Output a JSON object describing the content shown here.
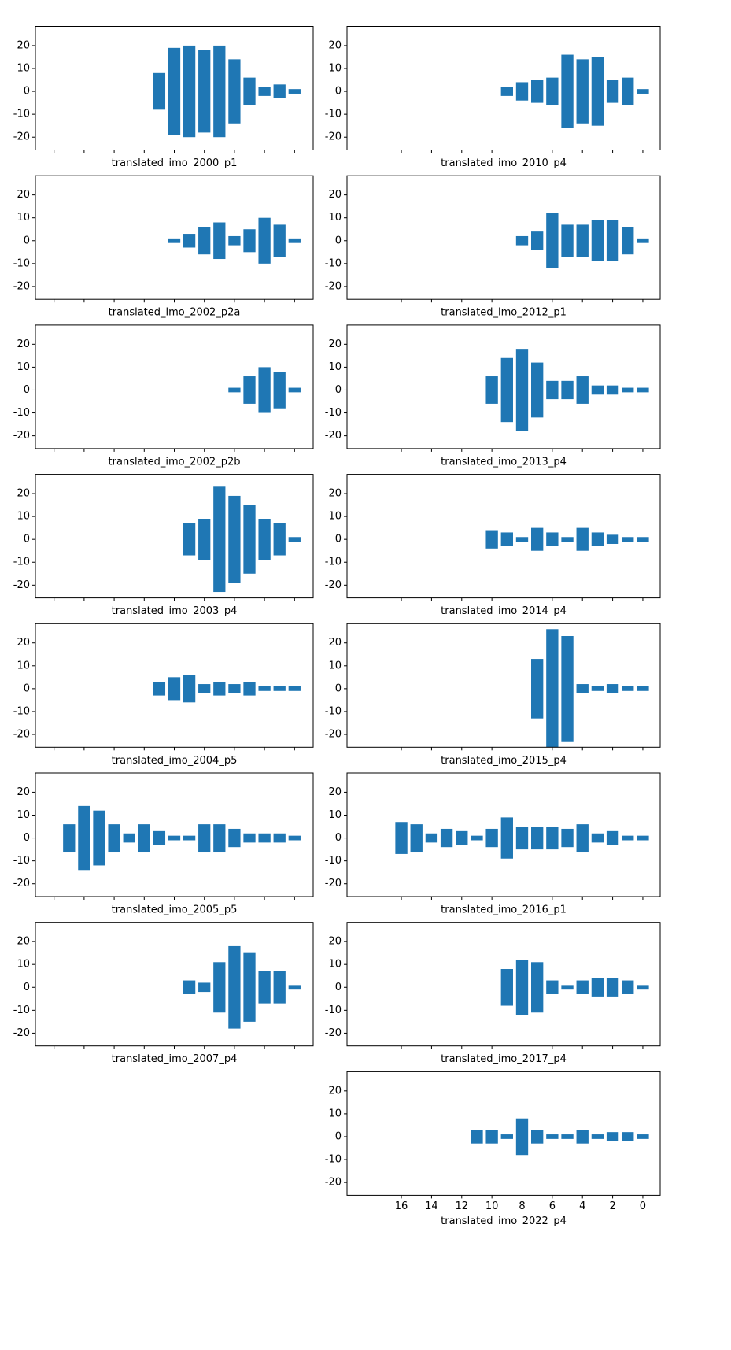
{
  "chart_data": [
    {
      "type": "bar",
      "xlabel": "translated_imo_2000_p1",
      "x": [
        9,
        8,
        7,
        6,
        5,
        4,
        3,
        2,
        1,
        0
      ],
      "values": [
        8,
        19,
        20,
        18,
        20,
        14,
        6,
        2,
        3,
        1
      ],
      "color": "#1f77b4",
      "xlim": [
        17.24,
        -1.24
      ],
      "ylim": [
        -25.6,
        28.4
      ],
      "yticks": [
        -20,
        -10,
        0,
        10,
        20
      ],
      "xticks": [
        16,
        14,
        12,
        10,
        8,
        6,
        4,
        2,
        0
      ],
      "show_xtick_labels": false
    },
    {
      "type": "bar",
      "xlabel": "translated_imo_2010_p4",
      "x": [
        9,
        8,
        7,
        6,
        5,
        4,
        3,
        2,
        1,
        0
      ],
      "values": [
        2,
        4,
        5,
        6,
        16,
        14,
        15,
        5,
        6,
        1
      ],
      "color": "#1f77b4",
      "xlim": [
        19.6,
        -1.15
      ],
      "ylim": [
        -25.6,
        28.4
      ],
      "yticks": [
        -20,
        -10,
        0,
        10,
        20
      ],
      "xticks": [
        16,
        14,
        12,
        10,
        8,
        6,
        4,
        2,
        0
      ],
      "show_xtick_labels": false
    },
    {
      "type": "bar",
      "xlabel": "translated_imo_2002_p2a",
      "x": [
        8,
        7,
        6,
        5,
        4,
        3,
        2,
        1,
        0
      ],
      "values": [
        1,
        3,
        6,
        8,
        2,
        5,
        10,
        7,
        1
      ],
      "color": "#1f77b4",
      "xlim": [
        17.24,
        -1.24
      ],
      "ylim": [
        -25.6,
        28.4
      ],
      "yticks": [
        -20,
        -10,
        0,
        10,
        20
      ],
      "xticks": [
        16,
        14,
        12,
        10,
        8,
        6,
        4,
        2,
        0
      ],
      "show_xtick_labels": false
    },
    {
      "type": "bar",
      "xlabel": "translated_imo_2012_p1",
      "x": [
        8,
        7,
        6,
        5,
        4,
        3,
        2,
        1,
        0
      ],
      "values": [
        2,
        4,
        12,
        7,
        7,
        9,
        9,
        6,
        1
      ],
      "color": "#1f77b4",
      "xlim": [
        19.6,
        -1.15
      ],
      "ylim": [
        -25.6,
        28.4
      ],
      "yticks": [
        -20,
        -10,
        0,
        10,
        20
      ],
      "xticks": [
        16,
        14,
        12,
        10,
        8,
        6,
        4,
        2,
        0
      ],
      "show_xtick_labels": false
    },
    {
      "type": "bar",
      "xlabel": "translated_imo_2002_p2b",
      "x": [
        4,
        3,
        2,
        1,
        0
      ],
      "values": [
        1,
        6,
        10,
        8,
        1
      ],
      "color": "#1f77b4",
      "xlim": [
        17.24,
        -1.24
      ],
      "ylim": [
        -25.6,
        28.4
      ],
      "yticks": [
        -20,
        -10,
        0,
        10,
        20
      ],
      "xticks": [
        16,
        14,
        12,
        10,
        8,
        6,
        4,
        2,
        0
      ],
      "show_xtick_labels": false
    },
    {
      "type": "bar",
      "xlabel": "translated_imo_2013_p4",
      "x": [
        10,
        9,
        8,
        7,
        6,
        5,
        4,
        3,
        2,
        1,
        0
      ],
      "values": [
        6,
        14,
        18,
        12,
        4,
        4,
        6,
        2,
        2,
        1,
        1
      ],
      "color": "#1f77b4",
      "xlim": [
        19.6,
        -1.15
      ],
      "ylim": [
        -25.6,
        28.4
      ],
      "yticks": [
        -20,
        -10,
        0,
        10,
        20
      ],
      "xticks": [
        16,
        14,
        12,
        10,
        8,
        6,
        4,
        2,
        0
      ],
      "show_xtick_labels": false
    },
    {
      "type": "bar",
      "xlabel": "translated_imo_2003_p4",
      "x": [
        7,
        6,
        5,
        4,
        3,
        2,
        1,
        0
      ],
      "values": [
        7,
        9,
        23,
        19,
        15,
        9,
        7,
        1
      ],
      "color": "#1f77b4",
      "xlim": [
        17.24,
        -1.24
      ],
      "ylim": [
        -25.6,
        28.4
      ],
      "yticks": [
        -20,
        -10,
        0,
        10,
        20
      ],
      "xticks": [
        16,
        14,
        12,
        10,
        8,
        6,
        4,
        2,
        0
      ],
      "show_xtick_labels": false
    },
    {
      "type": "bar",
      "xlabel": "translated_imo_2014_p4",
      "x": [
        10,
        9,
        8,
        7,
        6,
        5,
        4,
        3,
        2,
        1,
        0
      ],
      "values": [
        4,
        3,
        1,
        5,
        3,
        1,
        5,
        3,
        2,
        1,
        1
      ],
      "color": "#1f77b4",
      "xlim": [
        19.6,
        -1.15
      ],
      "ylim": [
        -25.6,
        28.4
      ],
      "yticks": [
        -20,
        -10,
        0,
        10,
        20
      ],
      "xticks": [
        16,
        14,
        12,
        10,
        8,
        6,
        4,
        2,
        0
      ],
      "show_xtick_labels": false
    },
    {
      "type": "bar",
      "xlabel": "translated_imo_2004_p5",
      "x": [
        9,
        8,
        7,
        6,
        5,
        4,
        3,
        2,
        1,
        0
      ],
      "values": [
        3,
        5,
        6,
        2,
        3,
        2,
        3,
        1,
        1,
        1
      ],
      "color": "#1f77b4",
      "xlim": [
        17.24,
        -1.24
      ],
      "ylim": [
        -25.6,
        28.4
      ],
      "yticks": [
        -20,
        -10,
        0,
        10,
        20
      ],
      "xticks": [
        16,
        14,
        12,
        10,
        8,
        6,
        4,
        2,
        0
      ],
      "show_xtick_labels": false
    },
    {
      "type": "bar",
      "xlabel": "translated_imo_2015_p4",
      "x": [
        7,
        6,
        5,
        4,
        3,
        2,
        1,
        0
      ],
      "values": [
        13,
        26,
        23,
        2,
        1,
        2,
        1,
        1
      ],
      "color": "#1f77b4",
      "xlim": [
        19.6,
        -1.15
      ],
      "ylim": [
        -25.6,
        28.4
      ],
      "yticks": [
        -20,
        -10,
        0,
        10,
        20
      ],
      "xticks": [
        16,
        14,
        12,
        10,
        8,
        6,
        4,
        2,
        0
      ],
      "show_xtick_labels": false
    },
    {
      "type": "bar",
      "xlabel": "translated_imo_2005_p5",
      "x": [
        15,
        14,
        13,
        12,
        11,
        10,
        9,
        8,
        7,
        6,
        5,
        4,
        3,
        2,
        1,
        0
      ],
      "values": [
        6,
        14,
        12,
        6,
        2,
        6,
        3,
        1,
        1,
        6,
        6,
        4,
        2,
        2,
        2,
        1
      ],
      "color": "#1f77b4",
      "xlim": [
        17.24,
        -1.24
      ],
      "ylim": [
        -25.6,
        28.4
      ],
      "yticks": [
        -20,
        -10,
        0,
        10,
        20
      ],
      "xticks": [
        16,
        14,
        12,
        10,
        8,
        6,
        4,
        2,
        0
      ],
      "show_xtick_labels": false
    },
    {
      "type": "bar",
      "xlabel": "translated_imo_2016_p1",
      "x": [
        16,
        15,
        14,
        13,
        12,
        11,
        10,
        9,
        8,
        7,
        6,
        5,
        4,
        3,
        2,
        1,
        0
      ],
      "values": [
        7,
        6,
        2,
        4,
        3,
        1,
        4,
        9,
        5,
        5,
        5,
        4,
        6,
        2,
        3,
        1,
        1
      ],
      "color": "#1f77b4",
      "xlim": [
        19.6,
        -1.15
      ],
      "ylim": [
        -25.6,
        28.4
      ],
      "yticks": [
        -20,
        -10,
        0,
        10,
        20
      ],
      "xticks": [
        16,
        14,
        12,
        10,
        8,
        6,
        4,
        2,
        0
      ],
      "show_xtick_labels": false
    },
    {
      "type": "bar",
      "xlabel": "translated_imo_2007_p4",
      "x": [
        7,
        6,
        5,
        4,
        3,
        2,
        1,
        0
      ],
      "values": [
        3,
        2,
        11,
        18,
        15,
        7,
        7,
        1
      ],
      "color": "#1f77b4",
      "xlim": [
        17.24,
        -1.24
      ],
      "ylim": [
        -25.6,
        28.4
      ],
      "yticks": [
        -20,
        -10,
        0,
        10,
        20
      ],
      "xticks": [
        16,
        14,
        12,
        10,
        8,
        6,
        4,
        2,
        0
      ],
      "show_xtick_labels": false
    },
    {
      "type": "bar",
      "xlabel": "translated_imo_2017_p4",
      "x": [
        9,
        8,
        7,
        6,
        5,
        4,
        3,
        2,
        1,
        0
      ],
      "values": [
        8,
        12,
        11,
        3,
        1,
        3,
        4,
        4,
        3,
        1
      ],
      "color": "#1f77b4",
      "xlim": [
        19.6,
        -1.15
      ],
      "ylim": [
        -25.6,
        28.4
      ],
      "yticks": [
        -20,
        -10,
        0,
        10,
        20
      ],
      "xticks": [
        16,
        14,
        12,
        10,
        8,
        6,
        4,
        2,
        0
      ],
      "show_xtick_labels": false
    },
    {
      "type": "bar",
      "xlabel": "translated_imo_2022_p4",
      "x": [
        11,
        10,
        9,
        8,
        7,
        6,
        5,
        4,
        3,
        2,
        1,
        0
      ],
      "values": [
        3,
        3,
        1,
        8,
        3,
        1,
        1,
        3,
        1,
        2,
        2,
        1
      ],
      "color": "#1f77b4",
      "xlim": [
        19.6,
        -1.15
      ],
      "ylim": [
        -25.6,
        28.4
      ],
      "yticks": [
        -20,
        -10,
        0,
        10,
        20
      ],
      "xticks": [
        16,
        14,
        12,
        10,
        8,
        6,
        4,
        2,
        0
      ],
      "show_xtick_labels": true
    }
  ]
}
